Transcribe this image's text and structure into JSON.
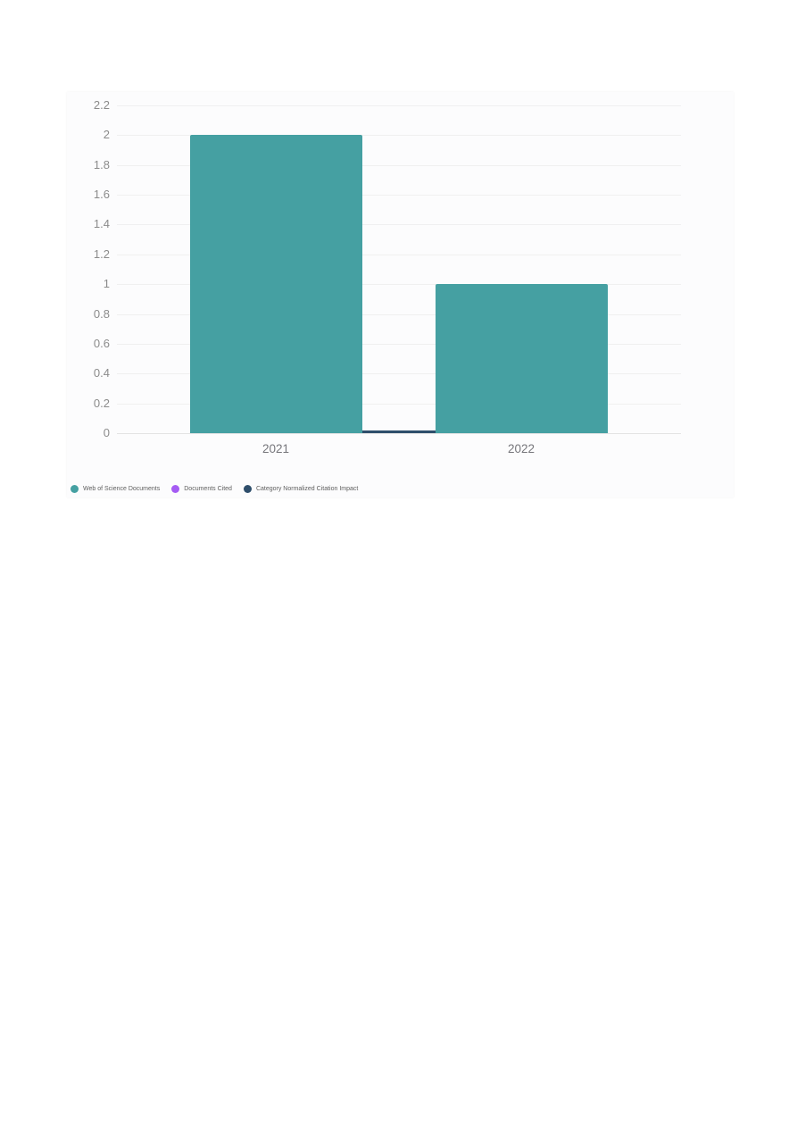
{
  "chart_data": {
    "type": "bar",
    "title": "",
    "categories": [
      "2021",
      "2022"
    ],
    "series": [
      {
        "name": "Web of Science Documents",
        "kind": "bar",
        "color": "#45a0a2",
        "values": [
          2,
          1
        ]
      },
      {
        "name": "Documents Cited",
        "kind": "bar",
        "color": "#a55cf3",
        "values": [
          0,
          0
        ]
      },
      {
        "name": "Category Normalized Citation Impact",
        "kind": "line",
        "color": "#2e4e6b",
        "values": [
          0,
          0
        ]
      }
    ],
    "xlabel": "",
    "ylabel": "",
    "ylim": [
      0,
      2.2
    ],
    "yticks": [
      0,
      0.2,
      0.4,
      0.6,
      0.8,
      1,
      1.2,
      1.4,
      1.6,
      1.8,
      2,
      2.2
    ],
    "yticklabels": [
      "0",
      "0.2",
      "0.4",
      "0.6",
      "0.8",
      "1",
      "1.2",
      "1.4",
      "1.6",
      "1.8",
      "2",
      "2.2"
    ],
    "grid": true,
    "legend_position": "bottom-left",
    "colors": {
      "grid_line": "#f0f0f0",
      "zero_line": "#e3e3e3",
      "y_axis_label": "#8b8b8b",
      "x_axis_label": "#76767b",
      "legend_text": "#5e5e5e",
      "card_background": "#fcfcfd",
      "page_background": "#ffffff"
    }
  }
}
